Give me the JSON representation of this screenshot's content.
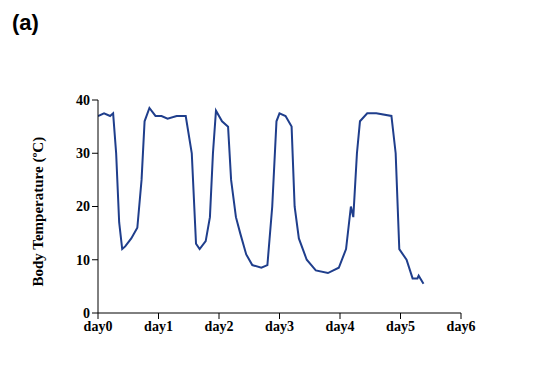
{
  "chart_data": {
    "type": "line",
    "title": "(a)",
    "y_label": "Body Temperature (ºC)",
    "color": "#1f3e8c",
    "grid": false,
    "x": [
      0.0,
      0.1,
      0.2,
      0.25,
      0.3,
      0.35,
      0.4,
      0.45,
      0.55,
      0.65,
      0.72,
      0.77,
      0.85,
      0.95,
      1.05,
      1.15,
      1.3,
      1.45,
      1.55,
      1.62,
      1.68,
      1.78,
      1.85,
      1.9,
      1.95,
      2.05,
      2.15,
      2.2,
      2.28,
      2.35,
      2.45,
      2.55,
      2.7,
      2.8,
      2.88,
      2.95,
      3.0,
      3.1,
      3.2,
      3.25,
      3.32,
      3.45,
      3.6,
      3.8,
      3.98,
      4.1,
      4.18,
      4.22,
      4.28,
      4.33,
      4.45,
      4.6,
      4.85,
      4.92,
      4.98,
      5.1,
      5.2,
      5.28,
      5.3,
      5.38
    ],
    "values": [
      37,
      37.5,
      37,
      37.5,
      30,
      17,
      12,
      12.5,
      14,
      16,
      25,
      36,
      38.5,
      37,
      37,
      36.5,
      37,
      37,
      30,
      13,
      12,
      13.5,
      18,
      30,
      38,
      36,
      35,
      25,
      18,
      15,
      11,
      9,
      8.5,
      9,
      20,
      36,
      37.5,
      37,
      35,
      20,
      14,
      10,
      8,
      7.5,
      8.5,
      12,
      20,
      18,
      30,
      36,
      37.5,
      37.5,
      37,
      30,
      12,
      10,
      6.5,
      6.5,
      7,
      5.5
    ],
    "xlim": [
      0,
      6
    ],
    "xticks": [
      {
        "value": 0,
        "label": "day0"
      },
      {
        "value": 1,
        "label": "day1"
      },
      {
        "value": 2,
        "label": "day2"
      },
      {
        "value": 3,
        "label": "day3"
      },
      {
        "value": 4,
        "label": "day4"
      },
      {
        "value": 5,
        "label": "day5"
      },
      {
        "value": 6,
        "label": "day6"
      }
    ],
    "ylim": [
      0,
      40
    ],
    "yticks": [
      0,
      10,
      20,
      30,
      40
    ]
  }
}
